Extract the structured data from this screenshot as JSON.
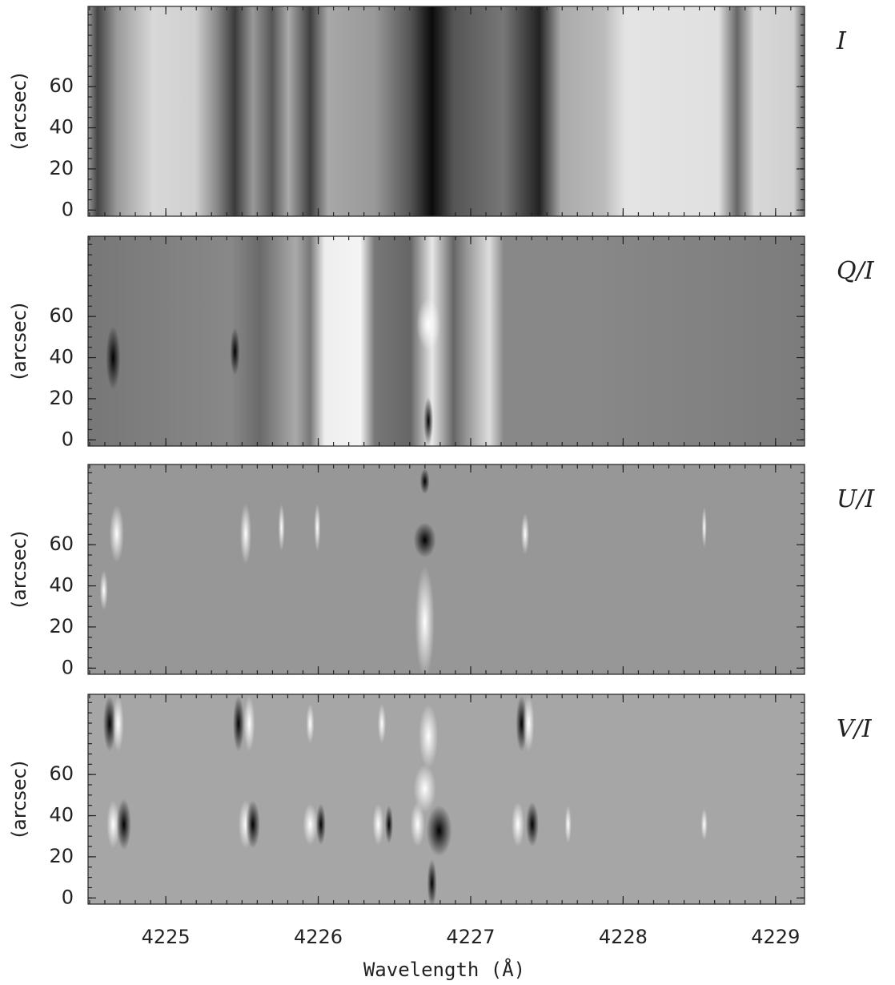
{
  "chart_data": [
    {
      "type": "image",
      "label": "I",
      "ylabel": "(arcsec)",
      "xlim": [
        4224.49,
        4229.19
      ],
      "xticks": [
        4225,
        4226,
        4227,
        4228,
        4229
      ],
      "ylim": [
        -3,
        99
      ],
      "yticks": [
        0,
        20,
        40,
        60
      ]
    },
    {
      "type": "image",
      "label": "Q/I",
      "ylabel": "(arcsec)",
      "xlim": [
        4224.49,
        4229.19
      ],
      "xticks": [
        4225,
        4226,
        4227,
        4228,
        4229
      ],
      "ylim": [
        -3,
        99
      ],
      "yticks": [
        0,
        20,
        40,
        60
      ]
    },
    {
      "type": "image",
      "label": "U/I",
      "ylabel": "(arcsec)",
      "xlim": [
        4224.49,
        4229.19
      ],
      "xticks": [
        4225,
        4226,
        4227,
        4228,
        4229
      ],
      "ylim": [
        -3,
        99
      ],
      "yticks": [
        0,
        20,
        40,
        60
      ]
    },
    {
      "type": "image",
      "label": "V/I",
      "ylabel": "(arcsec)",
      "xlabel": "Wavelength (Å)",
      "xlim": [
        4224.49,
        4229.19
      ],
      "xticks": [
        4225,
        4226,
        4227,
        4228,
        4229
      ],
      "ylim": [
        -3,
        99
      ],
      "yticks": [
        0,
        20,
        40,
        60
      ]
    }
  ]
}
